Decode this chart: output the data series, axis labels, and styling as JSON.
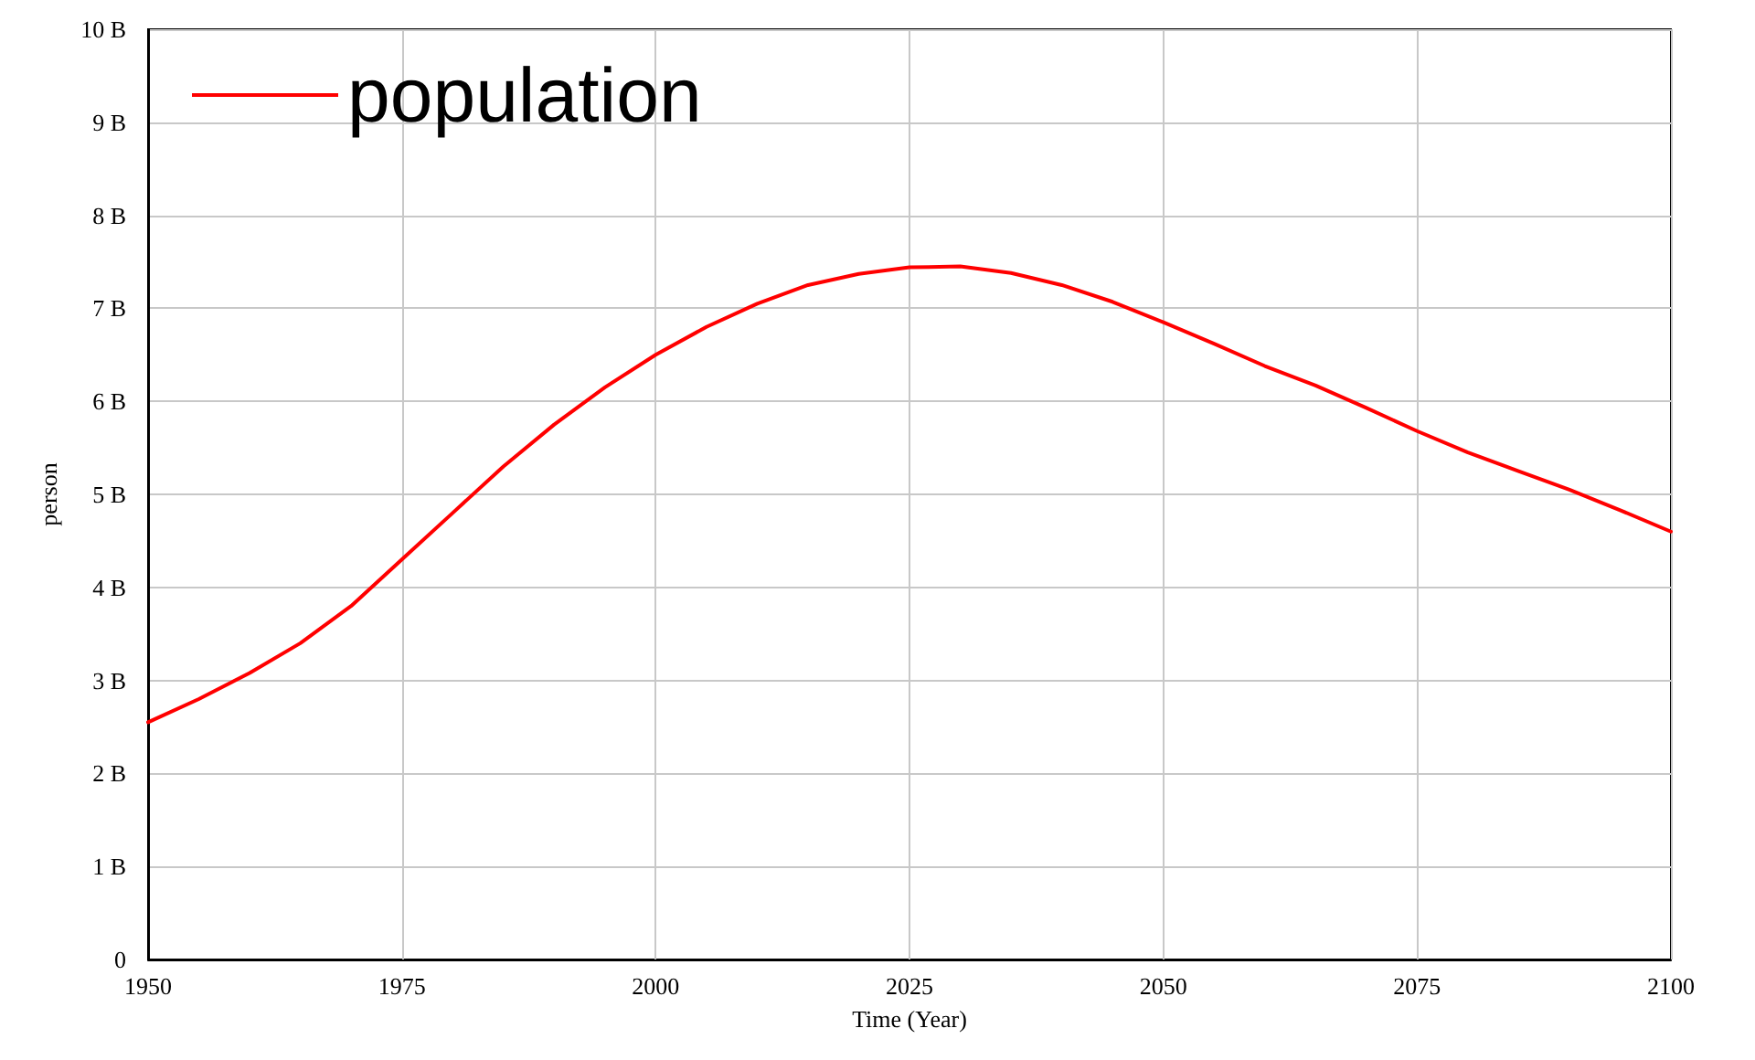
{
  "chart_data": {
    "type": "line",
    "xlabel": "Time (Year)",
    "ylabel": "person",
    "x": [
      1950,
      1955,
      1960,
      1965,
      1970,
      1975,
      1980,
      1985,
      1990,
      1995,
      2000,
      2005,
      2010,
      2015,
      2020,
      2025,
      2030,
      2035,
      2040,
      2045,
      2050,
      2055,
      2060,
      2065,
      2070,
      2075,
      2080,
      2085,
      2090,
      2095,
      2100
    ],
    "series": [
      {
        "name": "population",
        "color": "#ff0000",
        "values": [
          2550000000,
          2800000000,
          3080000000,
          3400000000,
          3800000000,
          4300000000,
          4800000000,
          5300000000,
          5750000000,
          6150000000,
          6500000000,
          6800000000,
          7050000000,
          7250000000,
          7370000000,
          7440000000,
          7450000000,
          7380000000,
          7250000000,
          7070000000,
          6850000000,
          6620000000,
          6380000000,
          6170000000,
          5930000000,
          5680000000,
          5450000000,
          5250000000,
          5050000000,
          4830000000,
          4600000000
        ]
      }
    ],
    "xlim": [
      1950,
      2100
    ],
    "xticks": [
      1950,
      1975,
      2000,
      2025,
      2050,
      2075,
      2100
    ],
    "ylim": [
      0,
      10000000000
    ],
    "yticks": [
      0,
      {
        "value": 1000000000,
        "label": "1 B"
      },
      {
        "value": 2000000000,
        "label": "2 B"
      },
      {
        "value": 3000000000,
        "label": "3 B"
      },
      {
        "value": 4000000000,
        "label": "4 B"
      },
      {
        "value": 5000000000,
        "label": "5 B"
      },
      {
        "value": 6000000000,
        "label": "6 B"
      },
      {
        "value": 7000000000,
        "label": "7 B"
      },
      {
        "value": 8000000000,
        "label": "8 B"
      },
      {
        "value": 9000000000,
        "label": "9 B"
      },
      {
        "value": 10000000000,
        "label": "10 B"
      }
    ],
    "grid": true,
    "legend": "top left",
    "marker": "none",
    "line_style": "solid"
  }
}
